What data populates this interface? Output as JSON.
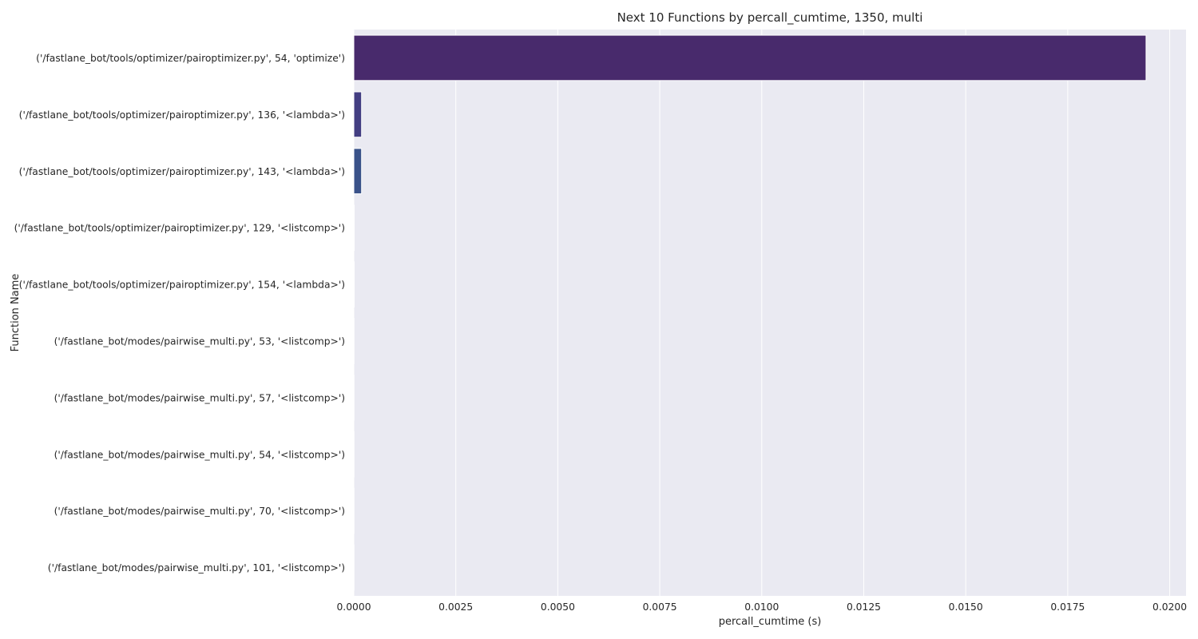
{
  "chart_data": {
    "type": "bar",
    "orientation": "horizontal",
    "title": "Next 10 Functions by percall_cumtime, 1350, multi",
    "xlabel": "percall_cumtime (s)",
    "ylabel": "Function Name",
    "xlim": [
      0,
      0.0204
    ],
    "xticks": [
      "0.0000",
      "0.0025",
      "0.0050",
      "0.0075",
      "0.0100",
      "0.0125",
      "0.0150",
      "0.0175",
      "0.0200"
    ],
    "grid": true,
    "categories": [
      "('/fastlane_bot/tools/optimizer/pairoptimizer.py', 54, 'optimize')",
      "('/fastlane_bot/tools/optimizer/pairoptimizer.py', 136, '<lambda>')",
      "('/fastlane_bot/tools/optimizer/pairoptimizer.py', 143, '<lambda>')",
      "('/fastlane_bot/tools/optimizer/pairoptimizer.py', 129, '<listcomp>')",
      "('/fastlane_bot/tools/optimizer/pairoptimizer.py', 154, '<lambda>')",
      "('/fastlane_bot/modes/pairwise_multi.py', 53, '<listcomp>')",
      "('/fastlane_bot/modes/pairwise_multi.py', 57, '<listcomp>')",
      "('/fastlane_bot/modes/pairwise_multi.py', 54, '<listcomp>')",
      "('/fastlane_bot/modes/pairwise_multi.py', 70, '<listcomp>')",
      "('/fastlane_bot/modes/pairwise_multi.py', 101, '<listcomp>')"
    ],
    "values": [
      0.01942,
      0.00019,
      0.00019,
      1e-05,
      1e-05,
      5e-06,
      5e-06,
      5e-06,
      5e-06,
      5e-06
    ],
    "colors": [
      "#482a6c",
      "#433e82",
      "#3a5289",
      "#30658e",
      "#29778e",
      "#21898c",
      "#1f9c86",
      "#2db07a",
      "#4cc26b",
      "#78d152"
    ]
  }
}
